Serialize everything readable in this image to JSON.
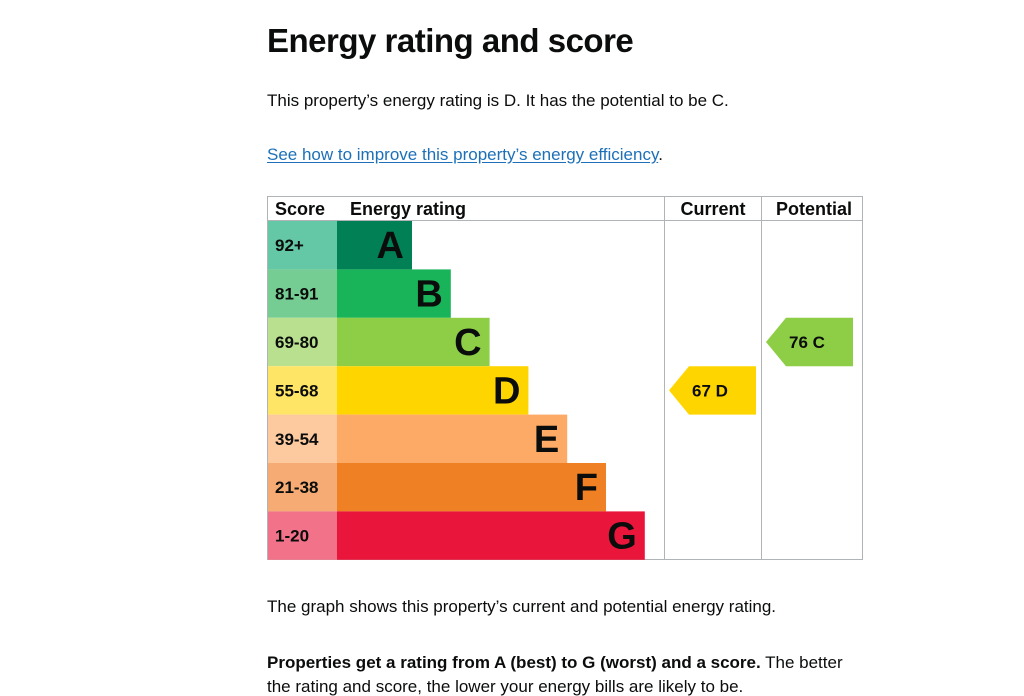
{
  "page": {
    "title": "Energy rating and score",
    "intro": "This property’s energy rating is D. It has the potential to be C.",
    "link_text": "See how to improve this property’s energy efficiency",
    "link_suffix": ".",
    "graph_caption": "The graph shows this property’s current and potential energy rating.",
    "rating_info_bold": "Properties get a rating from A (best) to G (worst) and a score.",
    "rating_info_rest": " The better the rating and score, the lower your energy bills are likely to be."
  },
  "chart_data": {
    "type": "table",
    "headers": {
      "score": "Score",
      "rating": "Energy rating",
      "current": "Current",
      "potential": "Potential"
    },
    "bands": [
      {
        "letter": "A",
        "range": "92+",
        "color": "#008054",
        "light": "#64c7a5"
      },
      {
        "letter": "B",
        "range": "81-91",
        "color": "#19b459",
        "light": "#76cd93"
      },
      {
        "letter": "C",
        "range": "69-80",
        "color": "#8dce46",
        "light": "#b8e08e"
      },
      {
        "letter": "D",
        "range": "55-68",
        "color": "#ffd500",
        "light": "#ffe566"
      },
      {
        "letter": "E",
        "range": "39-54",
        "color": "#fcaa65",
        "light": "#fdc99f"
      },
      {
        "letter": "F",
        "range": "21-38",
        "color": "#ef8023",
        "light": "#f5ab73"
      },
      {
        "letter": "G",
        "range": "1-20",
        "color": "#e9153b",
        "light": "#f27389"
      }
    ],
    "current": {
      "score": 67,
      "band": "D",
      "label": "67  D",
      "color": "#ffd500"
    },
    "potential": {
      "score": 76,
      "band": "C",
      "label": "76  C",
      "color": "#8dce46"
    }
  }
}
